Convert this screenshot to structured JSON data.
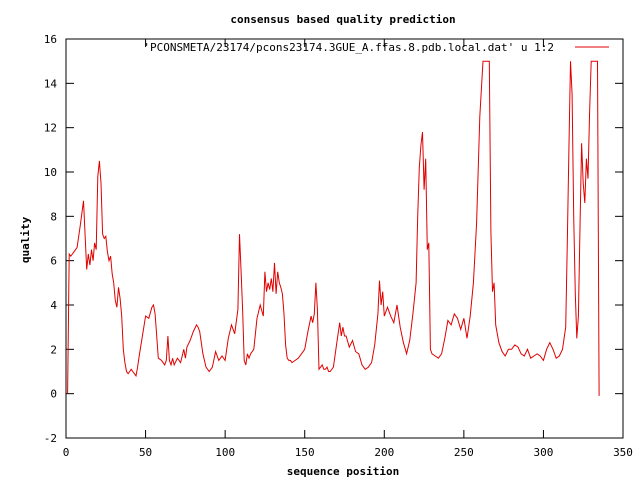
{
  "chart_data": {
    "type": "line",
    "title": "consensus based quality prediction",
    "xlabel": "sequence position",
    "ylabel": "quality",
    "xlim": [
      0,
      350
    ],
    "ylim": [
      -2,
      16
    ],
    "x_ticks": [
      0,
      50,
      100,
      150,
      200,
      250,
      300,
      350
    ],
    "y_ticks": [
      -2,
      0,
      2,
      4,
      6,
      8,
      10,
      12,
      14,
      16
    ],
    "grid": false,
    "legend_position": "top-right",
    "series": [
      {
        "name": "'PCONSMETA/23174/pcons23174.3GUE_A.ffas.8.pdb.local.dat' u 1:2",
        "color": "#e00000",
        "x": [
          1,
          2,
          3,
          4,
          5,
          7,
          9,
          11,
          13,
          14,
          15,
          16,
          17,
          18,
          19,
          20,
          21,
          22,
          23,
          24,
          25,
          26,
          27,
          28,
          29,
          30,
          31,
          32,
          33,
          34,
          35,
          36,
          37,
          38,
          39,
          40,
          41,
          42,
          43,
          44,
          45,
          46,
          48,
          50,
          52,
          54,
          55,
          56,
          57,
          58,
          60,
          62,
          63,
          64,
          65,
          66,
          67,
          68,
          70,
          72,
          74,
          75,
          76,
          78,
          80,
          82,
          83,
          84,
          85,
          86,
          88,
          90,
          92,
          94,
          96,
          98,
          100,
          102,
          104,
          106,
          108,
          109,
          110,
          111,
          112,
          113,
          114,
          115,
          116,
          118,
          120,
          122,
          124,
          125,
          126,
          127,
          128,
          129,
          130,
          131,
          132,
          133,
          134,
          135,
          136,
          137,
          138,
          139,
          140,
          141,
          142,
          144,
          146,
          148,
          150,
          152,
          154,
          155,
          156,
          157,
          158,
          159,
          160,
          161,
          162,
          163,
          164,
          165,
          166,
          168,
          170,
          172,
          173,
          174,
          175,
          176,
          178,
          180,
          182,
          184,
          186,
          188,
          190,
          192,
          194,
          196,
          197,
          198,
          199,
          200,
          202,
          204,
          206,
          208,
          210,
          212,
          214,
          216,
          218,
          220,
          221,
          222,
          223,
          224,
          225,
          226,
          227,
          228,
          229,
          230,
          232,
          234,
          236,
          238,
          240,
          242,
          244,
          246,
          248,
          250,
          252,
          254,
          256,
          258,
          260,
          262,
          263,
          264,
          265,
          266,
          267,
          268,
          269,
          270,
          272,
          274,
          276,
          278,
          280,
          282,
          284,
          286,
          288,
          290,
          292,
          294,
          296,
          298,
          300,
          302,
          304,
          306,
          308,
          310,
          312,
          314,
          315,
          316,
          317,
          318,
          319,
          320,
          321,
          322,
          323,
          324,
          325,
          326,
          327,
          328,
          329,
          330,
          331,
          332,
          333,
          334,
          335
        ],
        "y": [
          0,
          6.3,
          6.2,
          6.3,
          6.4,
          6.6,
          7.6,
          8.7,
          5.6,
          6.3,
          5.8,
          6.5,
          6,
          6.8,
          6.5,
          9.8,
          10.5,
          9.5,
          7.2,
          7,
          7.1,
          6.4,
          6,
          6.2,
          5.4,
          5,
          4.2,
          3.9,
          4.8,
          4.3,
          3.5,
          2,
          1.4,
          1,
          0.9,
          1,
          1.1,
          1,
          0.9,
          0.8,
          1.2,
          1.7,
          2.6,
          3.5,
          3.4,
          3.9,
          4,
          3.6,
          2.6,
          1.6,
          1.5,
          1.3,
          1.5,
          2.6,
          1.5,
          1.3,
          1.6,
          1.3,
          1.6,
          1.4,
          2,
          1.6,
          2.1,
          2.4,
          2.8,
          3.1,
          3,
          2.8,
          2.3,
          1.8,
          1.2,
          1,
          1.2,
          1.9,
          1.5,
          1.7,
          1.5,
          2.5,
          3.1,
          2.7,
          3.8,
          7.2,
          5.5,
          3.8,
          1.5,
          1.3,
          1.8,
          1.6,
          1.8,
          2,
          3.4,
          4,
          3.5,
          5.5,
          4.6,
          5,
          4.7,
          5.2,
          4.6,
          5.9,
          4.5,
          5.5,
          5,
          4.8,
          4.5,
          3.6,
          2.2,
          1.6,
          1.5,
          1.5,
          1.4,
          1.5,
          1.6,
          1.8,
          2,
          2.8,
          3.5,
          3.2,
          3.6,
          5,
          3.8,
          1.1,
          1.2,
          1.3,
          1.1,
          1.1,
          1.2,
          1,
          1,
          1.2,
          2.2,
          3.2,
          2.6,
          3,
          2.6,
          2.6,
          2.1,
          2.4,
          1.9,
          1.8,
          1.3,
          1.1,
          1.2,
          1.4,
          2.2,
          3.6,
          5.1,
          4,
          4.6,
          3.5,
          3.9,
          3.5,
          3.2,
          4,
          3,
          2.3,
          1.8,
          2.4,
          3.6,
          5,
          8,
          10.2,
          11.2,
          11.8,
          9.2,
          10.6,
          6.5,
          6.8,
          2,
          1.8,
          1.7,
          1.6,
          1.8,
          2.5,
          3.3,
          3.1,
          3.6,
          3.4,
          2.9,
          3.4,
          2.5,
          3.5,
          5,
          7.7,
          12.5,
          15,
          15,
          15,
          15,
          15,
          7.3,
          4.6,
          5,
          3.1,
          2.3,
          1.9,
          1.7,
          2,
          2,
          2.2,
          2.1,
          1.8,
          1.7,
          2,
          1.6,
          1.7,
          1.8,
          1.7,
          1.5,
          2,
          2.3,
          2,
          1.6,
          1.7,
          2,
          3,
          6.8,
          11,
          15,
          13.5,
          8,
          4.5,
          2.5,
          3.5,
          7.5,
          11.3,
          9.5,
          8.6,
          10.6,
          9.7,
          12.7,
          15,
          15,
          15,
          15,
          15,
          -0.1
        ]
      }
    ]
  }
}
